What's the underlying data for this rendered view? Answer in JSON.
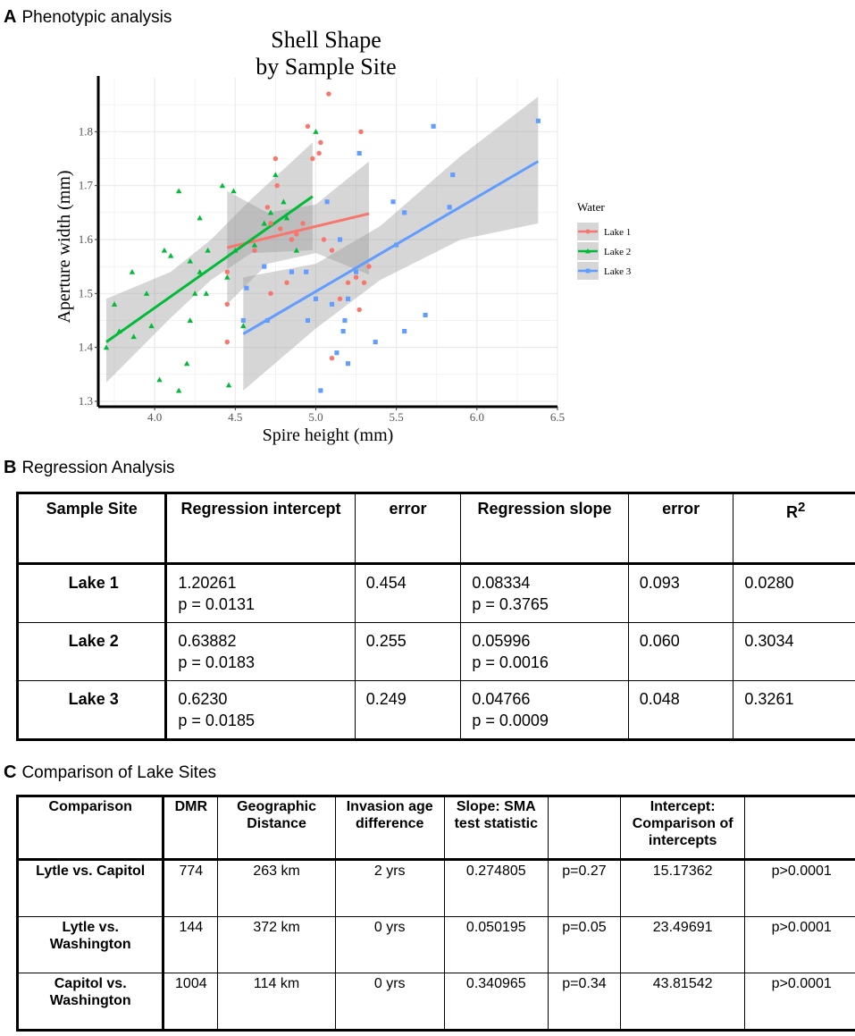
{
  "panel_a": {
    "letter": "A",
    "title": "Phenotypic analysis"
  },
  "chart_data": {
    "type": "scatter",
    "title": [
      "Shell Shape",
      "by Sample Site"
    ],
    "xlabel": "Spire height (mm)",
    "ylabel": "Aperture width (mm)",
    "xlim": [
      3.65,
      6.5
    ],
    "ylim": [
      1.29,
      1.9
    ],
    "xticks": [
      4.0,
      4.5,
      5.0,
      5.5,
      6.0,
      6.5
    ],
    "xtick_labels": [
      "4.0",
      "4.5",
      "5.0",
      "5.5",
      "6.0",
      "6.5"
    ],
    "yticks": [
      1.3,
      1.4,
      1.5,
      1.6,
      1.7,
      1.8
    ],
    "ytick_labels": [
      "1.3",
      "1.4",
      "1.5",
      "1.6",
      "1.7",
      "1.8"
    ],
    "grid": true,
    "legend": {
      "title": "Water",
      "position": "right"
    },
    "series": [
      {
        "name": "Lake 1",
        "color": "#f8766d",
        "marker": "circle",
        "points": [
          [
            4.45,
            1.41
          ],
          [
            4.45,
            1.48
          ],
          [
            4.45,
            1.54
          ],
          [
            4.62,
            1.58
          ],
          [
            4.7,
            1.66
          ],
          [
            4.72,
            1.63
          ],
          [
            4.72,
            1.5
          ],
          [
            4.75,
            1.75
          ],
          [
            4.78,
            1.62
          ],
          [
            4.82,
            1.52
          ],
          [
            4.85,
            1.6
          ],
          [
            4.88,
            1.61
          ],
          [
            4.92,
            1.63
          ],
          [
            4.95,
            1.81
          ],
          [
            4.98,
            1.75
          ],
          [
            5.02,
            1.76
          ],
          [
            5.03,
            1.78
          ],
          [
            5.08,
            1.87
          ],
          [
            5.1,
            1.38
          ],
          [
            5.1,
            1.58
          ],
          [
            5.15,
            1.49
          ],
          [
            5.2,
            1.52
          ],
          [
            5.25,
            1.53
          ],
          [
            5.27,
            1.47
          ],
          [
            5.28,
            1.8
          ],
          [
            5.3,
            1.52
          ],
          [
            5.33,
            1.55
          ],
          [
            5.05,
            1.6
          ],
          [
            4.76,
            1.7
          ]
        ],
        "fit": [
          [
            4.45,
            1.585
          ],
          [
            5.33,
            1.648
          ]
        ],
        "band": [
          [
            4.45,
            1.48,
            1.69
          ],
          [
            4.7,
            1.555,
            1.65
          ],
          [
            5.0,
            1.575,
            1.665
          ],
          [
            5.33,
            1.535,
            1.745
          ]
        ]
      },
      {
        "name": "Lake 2",
        "color": "#00ba38",
        "marker": "triangle",
        "points": [
          [
            3.7,
            1.4
          ],
          [
            3.75,
            1.48
          ],
          [
            3.78,
            1.43
          ],
          [
            3.86,
            1.54
          ],
          [
            3.87,
            1.42
          ],
          [
            3.95,
            1.5
          ],
          [
            3.98,
            1.44
          ],
          [
            4.03,
            1.34
          ],
          [
            4.06,
            1.58
          ],
          [
            4.1,
            1.57
          ],
          [
            4.15,
            1.69
          ],
          [
            4.15,
            1.32
          ],
          [
            4.2,
            1.37
          ],
          [
            4.22,
            1.45
          ],
          [
            4.22,
            1.56
          ],
          [
            4.25,
            1.5
          ],
          [
            4.28,
            1.54
          ],
          [
            4.28,
            1.64
          ],
          [
            4.32,
            1.5
          ],
          [
            4.33,
            1.58
          ],
          [
            4.42,
            1.7
          ],
          [
            4.45,
            1.53
          ],
          [
            4.46,
            1.33
          ],
          [
            4.49,
            1.69
          ],
          [
            4.5,
            1.58
          ],
          [
            4.55,
            1.44
          ],
          [
            4.62,
            1.59
          ],
          [
            4.68,
            1.63
          ],
          [
            4.72,
            1.65
          ],
          [
            4.75,
            1.72
          ],
          [
            4.8,
            1.67
          ],
          [
            4.82,
            1.64
          ],
          [
            4.88,
            1.58
          ],
          [
            5.0,
            1.8
          ]
        ],
        "fit": [
          [
            3.7,
            1.41
          ],
          [
            4.98,
            1.68
          ]
        ],
        "band": [
          [
            3.7,
            1.335,
            1.49
          ],
          [
            4.1,
            1.455,
            1.54
          ],
          [
            4.35,
            1.525,
            1.6
          ],
          [
            4.6,
            1.575,
            1.675
          ],
          [
            4.98,
            1.58,
            1.78
          ]
        ]
      },
      {
        "name": "Lake 3",
        "color": "#619cff",
        "marker": "square",
        "points": [
          [
            4.55,
            1.45
          ],
          [
            4.57,
            1.51
          ],
          [
            4.68,
            1.55
          ],
          [
            4.7,
            1.45
          ],
          [
            4.85,
            1.54
          ],
          [
            4.94,
            1.54
          ],
          [
            4.95,
            1.45
          ],
          [
            5.0,
            1.49
          ],
          [
            5.03,
            1.32
          ],
          [
            5.07,
            1.67
          ],
          [
            5.1,
            1.48
          ],
          [
            5.13,
            1.39
          ],
          [
            5.15,
            1.6
          ],
          [
            5.17,
            1.43
          ],
          [
            5.18,
            1.45
          ],
          [
            5.2,
            1.37
          ],
          [
            5.2,
            1.49
          ],
          [
            5.25,
            1.54
          ],
          [
            5.27,
            1.76
          ],
          [
            5.37,
            1.41
          ],
          [
            5.48,
            1.67
          ],
          [
            5.5,
            1.59
          ],
          [
            5.55,
            1.65
          ],
          [
            5.55,
            1.43
          ],
          [
            5.68,
            1.46
          ],
          [
            5.73,
            1.81
          ],
          [
            5.83,
            1.66
          ],
          [
            5.85,
            1.72
          ],
          [
            6.38,
            1.82
          ]
        ],
        "fit": [
          [
            4.55,
            1.425
          ],
          [
            6.38,
            1.745
          ]
        ],
        "band": [
          [
            4.55,
            1.32,
            1.53
          ],
          [
            5.0,
            1.435,
            1.555
          ],
          [
            5.4,
            1.525,
            1.625
          ],
          [
            5.9,
            1.6,
            1.755
          ],
          [
            6.38,
            1.63,
            1.865
          ]
        ]
      }
    ]
  },
  "panel_b": {
    "letter": "B",
    "title": "Regression Analysis",
    "headers": [
      "Sample Site",
      "Regression intercept",
      "error",
      "Regression slope",
      "error",
      "R"
    ],
    "r_superscript": "2",
    "rows": [
      {
        "site": "Lake 1",
        "intercept": "1.20261",
        "intercept_p": "p = 0.0131",
        "error1": "0.454",
        "slope": "0.08334",
        "slope_p": "p = 0.3765",
        "error2": "0.093",
        "r2": "0.0280"
      },
      {
        "site": "Lake 2",
        "intercept": "0.63882",
        "intercept_p": "p = 0.0183",
        "error1": "0.255",
        "slope": "0.05996",
        "slope_p": "p = 0.0016",
        "error2": "0.060",
        "r2": "0.3034"
      },
      {
        "site": "Lake 3",
        "intercept": "0.6230",
        "intercept_p": "p = 0.0185",
        "error1": "0.249",
        "slope": "0.04766",
        "slope_p": "p = 0.0009",
        "error2": "0.048",
        "r2": "0.3261"
      }
    ]
  },
  "panel_c": {
    "letter": "C",
    "title": "Comparison of Lake Sites",
    "headers": [
      "Comparison",
      "DMR",
      "Geographic Distance",
      "Invasion age difference",
      "Slope: SMA test statistic",
      "",
      "Intercept: Comparison of intercepts",
      ""
    ],
    "rows": [
      {
        "comparison": "Lytle vs. Capitol",
        "dmr": "774",
        "distance": "263 km",
        "age": "2 yrs",
        "slope_stat": "0.274805",
        "slope_p": "p=0.27",
        "intercept_stat": "15.17362",
        "intercept_p": "p>0.0001"
      },
      {
        "comparison": "Lytle vs. Washington",
        "dmr": "144",
        "distance": "372 km",
        "age": "0 yrs",
        "slope_stat": "0.050195",
        "slope_p": "p=0.05",
        "intercept_stat": "23.49691",
        "intercept_p": "p>0.0001"
      },
      {
        "comparison": "Capitol vs. Washington",
        "dmr": "1004",
        "distance": "114 km",
        "age": "0 yrs",
        "slope_stat": "0.340965",
        "slope_p": "p=0.34",
        "intercept_stat": "43.81542",
        "intercept_p": "p>0.0001"
      }
    ]
  }
}
